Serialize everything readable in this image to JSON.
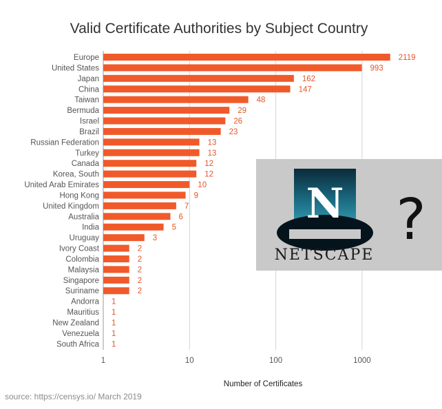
{
  "chart_data": {
    "type": "bar",
    "orientation": "horizontal",
    "title": "Valid Certificate Authorities by Subject Country",
    "xlabel": "Number of Certificates",
    "ylabel": "",
    "xscale": "log",
    "xlim": [
      1,
      4000
    ],
    "xticks": [
      "1",
      "10",
      "100",
      "1000"
    ],
    "grid": true,
    "bar_color": "#f05a2a",
    "categories": [
      "Europe",
      "United States",
      "Japan",
      "China",
      "Taiwan",
      "Bermuda",
      "Israel",
      "Brazil",
      "Russian Federation",
      "Turkey",
      "Canada",
      "Korea, South",
      "United Arab Emirates",
      "Hong Kong",
      "United Kingdom",
      "Australia",
      "India",
      "Uruguay",
      "Ivory Coast",
      "Colombia",
      "Malaysia",
      "Singapore",
      "Suriname",
      "Andorra",
      "Mauritius",
      "New Zealand",
      "Venezuela",
      "South Africa"
    ],
    "values": [
      2119,
      993,
      162,
      147,
      48,
      29,
      26,
      23,
      13,
      13,
      12,
      12,
      10,
      9,
      7,
      6,
      5,
      3,
      2,
      2,
      2,
      2,
      2,
      1,
      1,
      1,
      1,
      1
    ]
  },
  "source": "source: https://censys.io/ March 2019",
  "overlay": {
    "logo_text": "NETSCAPE",
    "logo_letter": "N",
    "question_mark": "?",
    "background": "#c9c9c9"
  }
}
